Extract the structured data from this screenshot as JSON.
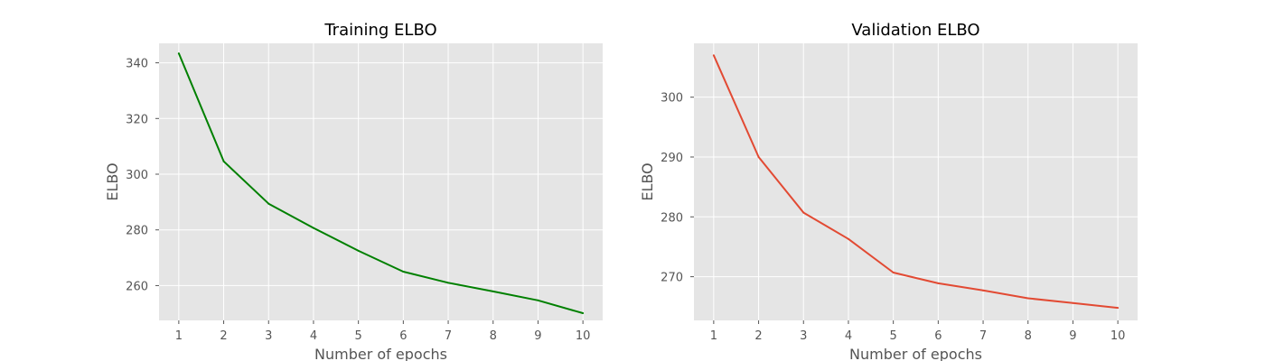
{
  "chart_data": [
    {
      "type": "line",
      "title": "Training ELBO",
      "xlabel": "Number of epochs",
      "ylabel": "ELBO",
      "x": [
        1,
        2,
        3,
        4,
        5,
        6,
        7,
        8,
        9,
        10
      ],
      "xlim": [
        0.56,
        10.44
      ],
      "ylim": [
        247.5,
        347.0
      ],
      "xticks": [
        1,
        2,
        3,
        4,
        5,
        6,
        7,
        8,
        9,
        10
      ],
      "yticks": [
        260,
        280,
        300,
        320,
        340
      ],
      "grid": true,
      "series": [
        {
          "color": "#008000",
          "values": [
            343.4,
            304.6,
            289.4,
            280.7,
            272.5,
            265.0,
            261.0,
            257.9,
            254.7,
            250.1
          ]
        }
      ]
    },
    {
      "type": "line",
      "title": "Validation ELBO",
      "xlabel": "Number of epochs",
      "ylabel": "ELBO",
      "x": [
        1,
        2,
        3,
        4,
        5,
        6,
        7,
        8,
        9,
        10
      ],
      "xlim": [
        0.56,
        10.44
      ],
      "ylim": [
        262.7,
        309.0
      ],
      "xticks": [
        1,
        2,
        3,
        4,
        5,
        6,
        7,
        8,
        9,
        10
      ],
      "yticks": [
        270,
        280,
        290,
        300
      ],
      "grid": true,
      "series": [
        {
          "color": "#E24A33",
          "values": [
            307.0,
            290.0,
            280.7,
            276.3,
            270.7,
            268.9,
            267.7,
            266.4,
            265.6,
            264.8
          ]
        }
      ]
    }
  ]
}
